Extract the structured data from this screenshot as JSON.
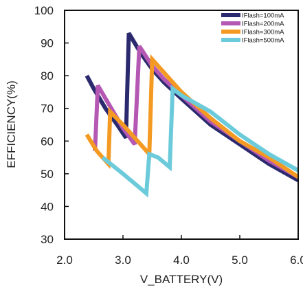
{
  "chart_data": {
    "type": "line",
    "title": "",
    "xlabel": "V_BATTERY(V)",
    "ylabel": "EFFICIENCY(%)",
    "xlim": [
      2.0,
      6.0
    ],
    "ylim": [
      30,
      100
    ],
    "x_ticks": [
      "2.0",
      "3.0",
      "4.0",
      "5.0",
      "6.0"
    ],
    "y_ticks": [
      "30",
      "40",
      "50",
      "60",
      "70",
      "80",
      "90",
      "100"
    ],
    "grid": false,
    "legend_position": "top-right",
    "series": [
      {
        "name": "IFlash=100mA",
        "color": "#2b2a6e",
        "x": [
          2.38,
          2.5,
          2.7,
          2.9,
          3.05,
          3.1,
          3.3,
          3.5,
          3.7,
          4.0,
          4.5,
          5.0,
          5.5,
          6.0,
          6.1
        ],
        "y": [
          80,
          76,
          70,
          65,
          61,
          93,
          87,
          82,
          78,
          73,
          65,
          59,
          53,
          48,
          47
        ]
      },
      {
        "name": "IFlash=200mA",
        "color": "#b458b4",
        "x": [
          2.52,
          2.57,
          2.8,
          3.0,
          3.2,
          3.28,
          3.5,
          3.7,
          4.0,
          4.5,
          5.0,
          5.5,
          6.0,
          6.1
        ],
        "y": [
          57,
          77,
          70,
          64,
          59,
          89,
          83,
          79,
          74,
          66,
          60,
          54,
          49,
          48
        ]
      },
      {
        "name": "IFlash=300mA",
        "color": "#f49a23",
        "x": [
          2.38,
          2.55,
          2.75,
          2.78,
          3.0,
          3.2,
          3.45,
          3.5,
          3.7,
          4.0,
          4.5,
          5.0,
          5.5,
          6.0,
          6.1
        ],
        "y": [
          62,
          57,
          53,
          69,
          65,
          61,
          56,
          85,
          81,
          75,
          67,
          60,
          55,
          49,
          48
        ]
      },
      {
        "name": "IFlash=500mA",
        "color": "#6ccbdb",
        "x": [
          2.65,
          3.0,
          3.2,
          3.4,
          3.45,
          3.6,
          3.8,
          3.85,
          4.0,
          4.5,
          5.0,
          5.5,
          6.0,
          6.1
        ],
        "y": [
          55,
          50,
          47,
          44,
          56,
          55,
          52,
          76,
          74,
          69,
          62,
          56,
          51,
          50
        ]
      }
    ]
  }
}
